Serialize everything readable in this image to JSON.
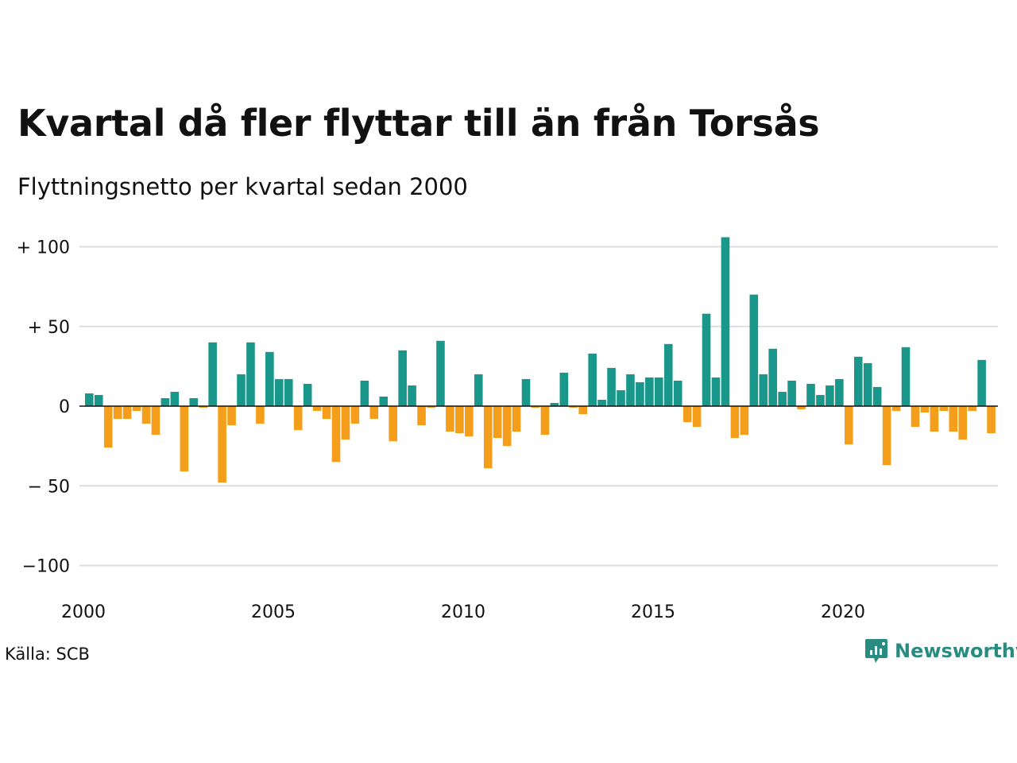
{
  "header": {
    "title": "Kvartal då fler flyttar till än från Torsås",
    "subtitle": "Flyttningsnetto per kvartal sedan 2000"
  },
  "footer": {
    "source": "Källa: SCB",
    "brand": "Newsworthy",
    "brand_icon": "newsworthy-logo-icon"
  },
  "colors": {
    "positive": "#19978a",
    "negative": "#f59e1c",
    "grid": "#dddddd",
    "zero_line": "#111111",
    "brand": "#2a8c80"
  },
  "chart_data": {
    "type": "bar",
    "title": "Kvartal då fler flyttar till än från Torsås",
    "subtitle": "Flyttningsnetto per kvartal sedan 2000",
    "xlabel": "",
    "ylabel": "",
    "ylim": [
      -100,
      100
    ],
    "grid": true,
    "yticks": [
      100,
      50,
      0,
      -50,
      -100
    ],
    "ytick_labels": [
      "+ 100",
      "+  50",
      "0",
      "− 50",
      "−100"
    ],
    "xticks": [
      2000,
      2005,
      2010,
      2015,
      2020
    ],
    "xtick_labels": [
      "2000",
      "2005",
      "2010",
      "2015",
      "2020"
    ],
    "start_year": 2000,
    "values": [
      8,
      7,
      -26,
      -8,
      -8,
      -3,
      -11,
      -18,
      5,
      9,
      -41,
      5,
      -1,
      40,
      -48,
      -12,
      20,
      40,
      -11,
      34,
      17,
      17,
      -15,
      14,
      -3,
      -8,
      -35,
      -21,
      -11,
      16,
      -8,
      6,
      -22,
      35,
      13,
      -12,
      -1,
      41,
      -16,
      -17,
      -19,
      20,
      -39,
      -20,
      -25,
      -16,
      17,
      -1,
      -18,
      2,
      21,
      -1,
      -5,
      33,
      4,
      24,
      10,
      20,
      15,
      18,
      18,
      39,
      16,
      -10,
      -13,
      58,
      18,
      106,
      -20,
      -18,
      70,
      20,
      36,
      9,
      16,
      -2,
      14,
      7,
      13,
      17,
      -24,
      31,
      27,
      12,
      -37,
      -3,
      37,
      -13,
      -4,
      -16,
      -3,
      -16,
      -21,
      -3,
      29,
      -17
    ]
  }
}
